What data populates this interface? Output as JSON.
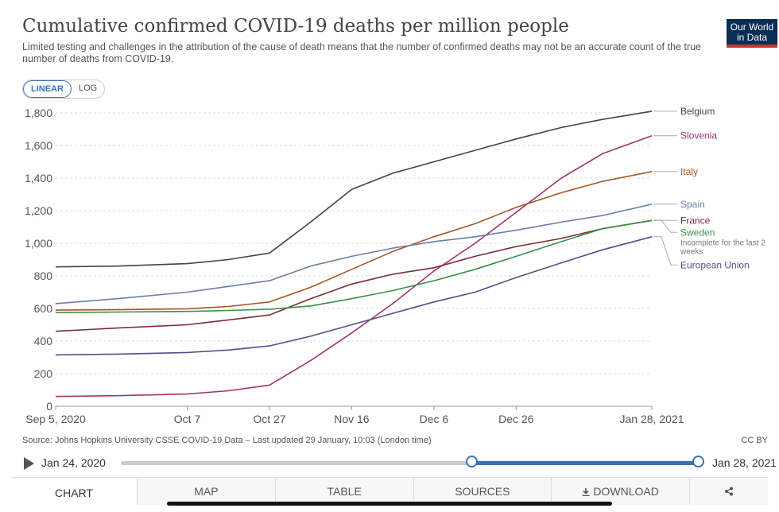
{
  "header": {
    "title": "Cumulative confirmed COVID-19 deaths per million people",
    "subtitle": "Limited testing and challenges in the attribution of the cause of death means that the number of confirmed deaths may not be an accurate count of the true number of deaths from COVID-19.",
    "logo_line1": "Our World",
    "logo_line2": "in Data"
  },
  "scale_toggle": {
    "linear": "LINEAR",
    "log": "LOG",
    "selected": "LINEAR"
  },
  "footer": {
    "source": "Source: Johns Hopkins University CSSE COVID-19 Data – Last updated 29 January, 10:03 (London time)",
    "license": "CC BY"
  },
  "timeline": {
    "start_label": "Jan 24, 2020",
    "end_label": "Jan 28, 2021"
  },
  "tabs": {
    "chart": "CHART",
    "map": "MAP",
    "table": "TABLE",
    "sources": "SOURCES",
    "download": "DOWNLOAD"
  },
  "chart_data": {
    "type": "line",
    "title": "Cumulative confirmed COVID-19 deaths per million people",
    "xlabel": "",
    "ylabel": "",
    "ylim": [
      0,
      1800
    ],
    "yticks": [
      "0",
      "200",
      "400",
      "600",
      "800",
      "1,000",
      "1,200",
      "1,400",
      "1,600",
      "1,800"
    ],
    "xticks": [
      "Sep 5, 2020",
      "Oct 7",
      "Oct 27",
      "Nov 16",
      "Dec 6",
      "Dec 26",
      "Jan 28, 2021"
    ],
    "xtick_dates": [
      "2020-09-05",
      "2020-10-07",
      "2020-10-27",
      "2020-11-16",
      "2020-12-06",
      "2020-12-26",
      "2021-01-28"
    ],
    "grid": true,
    "legend_position": "right",
    "annotation": "Incomplete for the last 2 weeks",
    "x": [
      "2020-09-05",
      "2020-09-20",
      "2020-10-07",
      "2020-10-17",
      "2020-10-27",
      "2020-11-06",
      "2020-11-16",
      "2020-11-26",
      "2020-12-06",
      "2020-12-16",
      "2020-12-26",
      "2021-01-06",
      "2021-01-16",
      "2021-01-28"
    ],
    "series": [
      {
        "name": "Belgium",
        "color": "#444444",
        "values": [
          855,
          860,
          875,
          900,
          940,
          1130,
          1330,
          1430,
          1500,
          1570,
          1640,
          1710,
          1760,
          1810
        ]
      },
      {
        "name": "Slovenia",
        "color": "#a2336f",
        "values": [
          60,
          65,
          75,
          95,
          130,
          280,
          450,
          630,
          830,
          1000,
          1190,
          1400,
          1550,
          1660
        ]
      },
      {
        "name": "Italy",
        "color": "#a65628",
        "values": [
          590,
          592,
          598,
          612,
          640,
          730,
          840,
          950,
          1040,
          1120,
          1220,
          1310,
          1380,
          1440
        ]
      },
      {
        "name": "Spain",
        "color": "#6a7fa8",
        "values": [
          630,
          660,
          700,
          735,
          770,
          860,
          920,
          970,
          1010,
          1040,
          1080,
          1130,
          1170,
          1240
        ]
      },
      {
        "name": "France",
        "color": "#7b2b3a",
        "values": [
          460,
          480,
          500,
          530,
          560,
          660,
          750,
          810,
          850,
          920,
          980,
          1030,
          1090,
          1140
        ]
      },
      {
        "name": "Sweden",
        "color": "#3a8f48",
        "values": [
          575,
          578,
          582,
          588,
          595,
          615,
          660,
          710,
          770,
          840,
          920,
          1010,
          1090,
          1140
        ]
      },
      {
        "name": "European Union",
        "color": "#5b4a8a",
        "values": [
          315,
          320,
          330,
          345,
          370,
          430,
          500,
          570,
          640,
          700,
          790,
          880,
          960,
          1040
        ]
      }
    ]
  }
}
